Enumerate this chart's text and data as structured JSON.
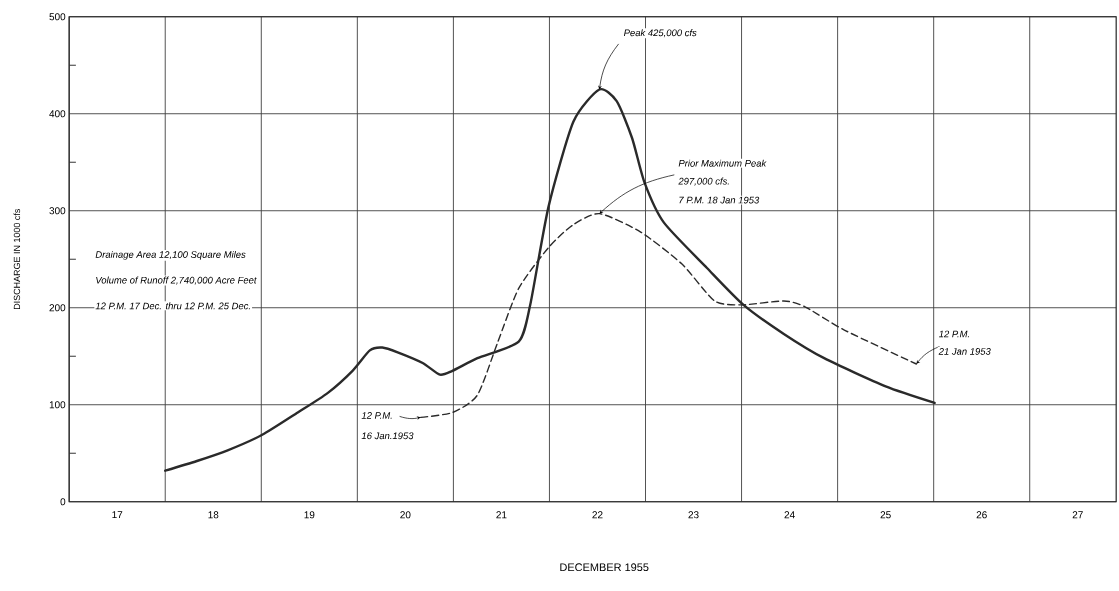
{
  "chart_data": {
    "type": "line",
    "xlabel": "DECEMBER 1955",
    "ylabel": "DISCHARGE IN 1000 cfs",
    "xlim": [
      17,
      27.9
    ],
    "ylim": [
      0,
      500
    ],
    "xticks": [
      {
        "value": 17,
        "label": null
      },
      {
        "value": 18,
        "label": null
      },
      {
        "value": 19,
        "label": null
      },
      {
        "value": 20,
        "label": null
      },
      {
        "value": 21,
        "label": null
      },
      {
        "value": 22,
        "label": null
      },
      {
        "value": 23,
        "label": null
      },
      {
        "value": 24,
        "label": null
      },
      {
        "value": 25,
        "label": null
      },
      {
        "value": 26,
        "label": null
      },
      {
        "value": 27,
        "label": null
      },
      {
        "value": 17.5,
        "label": "17"
      },
      {
        "value": 18.5,
        "label": "18"
      },
      {
        "value": 19.5,
        "label": "19"
      },
      {
        "value": 20.5,
        "label": "20"
      },
      {
        "value": 21.5,
        "label": "21"
      },
      {
        "value": 22.5,
        "label": "22"
      },
      {
        "value": 23.5,
        "label": "23"
      },
      {
        "value": 24.5,
        "label": "24"
      },
      {
        "value": 25.5,
        "label": "25"
      },
      {
        "value": 26.5,
        "label": "26"
      },
      {
        "value": 27.5,
        "label": "27"
      }
    ],
    "yticks": [
      0,
      100,
      200,
      300,
      400,
      500,
      {
        "value": 50,
        "label": null
      },
      {
        "value": 150,
        "label": null
      },
      {
        "value": 250,
        "label": null
      },
      {
        "value": 350,
        "label": null
      },
      {
        "value": 450,
        "label": null
      }
    ],
    "grid": true,
    "marker": "none",
    "series": [
      {
        "color": "#2a2a2a",
        "line_style": "solid",
        "x": [
          18.0,
          18.33,
          18.65,
          19.01,
          19.38,
          19.69,
          19.95,
          20.13,
          20.26,
          20.42,
          20.68,
          20.86,
          20.99,
          21.25,
          21.68,
          21.8,
          21.99,
          22.25,
          22.52,
          22.7,
          22.86,
          22.99,
          23.19,
          23.64,
          24.02,
          24.44,
          24.86,
          25.5,
          26.01
        ],
        "values": [
          32,
          42,
          53,
          69,
          92,
          112,
          135,
          156,
          159,
          154,
          143,
          131,
          135,
          148,
          165,
          203,
          304,
          392,
          425,
          413,
          375,
          329,
          288,
          241,
          203,
          173,
          148,
          119,
          102
        ]
      },
      {
        "color": "#2a2a2a",
        "line_style": "dashed",
        "x": [
          20.66,
          20.99,
          21.25,
          21.46,
          21.68,
          21.99,
          22.24,
          22.52,
          22.95,
          23.38,
          23.72,
          24.01,
          24.44,
          24.66,
          25.07,
          25.82
        ],
        "values": [
          87,
          92,
          110,
          164,
          220,
          262,
          285,
          297,
          278,
          245,
          207,
          203,
          207,
          201,
          177,
          142
        ]
      }
    ],
    "annotations": [
      {
        "text": "Peak 425,000 cfs",
        "x": 22.52,
        "y": 425
      },
      {
        "text": "Prior Maximum Peak",
        "x": 22.52,
        "y": 297
      },
      "297,000 cfs.",
      "7 P.M. 18 Jan 1953",
      "Drainage Area 12,100 Square Miles",
      "Volume of Runoff 2,740,000 Acre Feet",
      "12 P.M. 17 Dec. thru 12 P.M. 25 Dec.",
      {
        "text": "12 P.M.",
        "x": 20.66,
        "y": 87
      },
      "16 Jan.1953",
      {
        "text": "12 P.M.",
        "x": 25.82,
        "y": 142
      },
      "21 Jan 1953"
    ]
  }
}
